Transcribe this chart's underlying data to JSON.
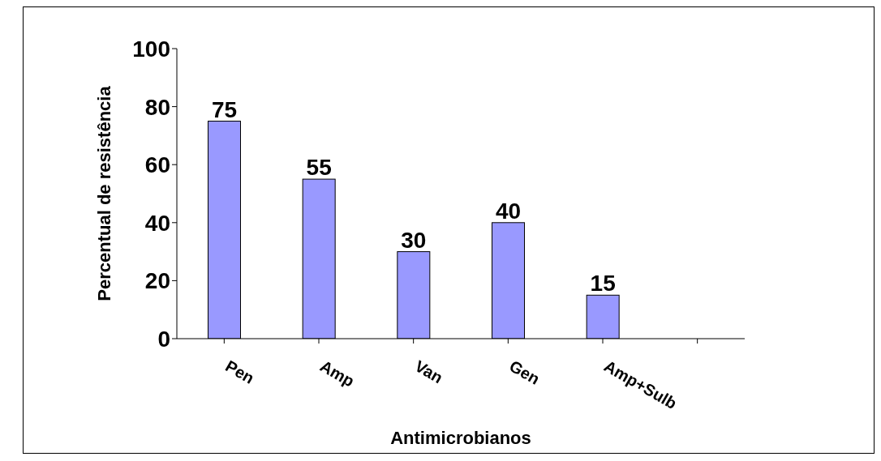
{
  "chart_data": {
    "type": "bar",
    "xlabel": "Antimicrobianos",
    "ylabel": "Percentual de resistência",
    "categories": [
      "Pen",
      "Amp",
      "Van",
      "Gen",
      "Amp+Sulb",
      null
    ],
    "values": [
      75,
      55,
      30,
      40,
      15,
      null
    ],
    "color": "#9999ff",
    "ylim": [
      0,
      100
    ],
    "yticks": [
      0,
      20,
      40,
      60,
      80,
      100
    ],
    "grid": false,
    "data_labels": true
  }
}
